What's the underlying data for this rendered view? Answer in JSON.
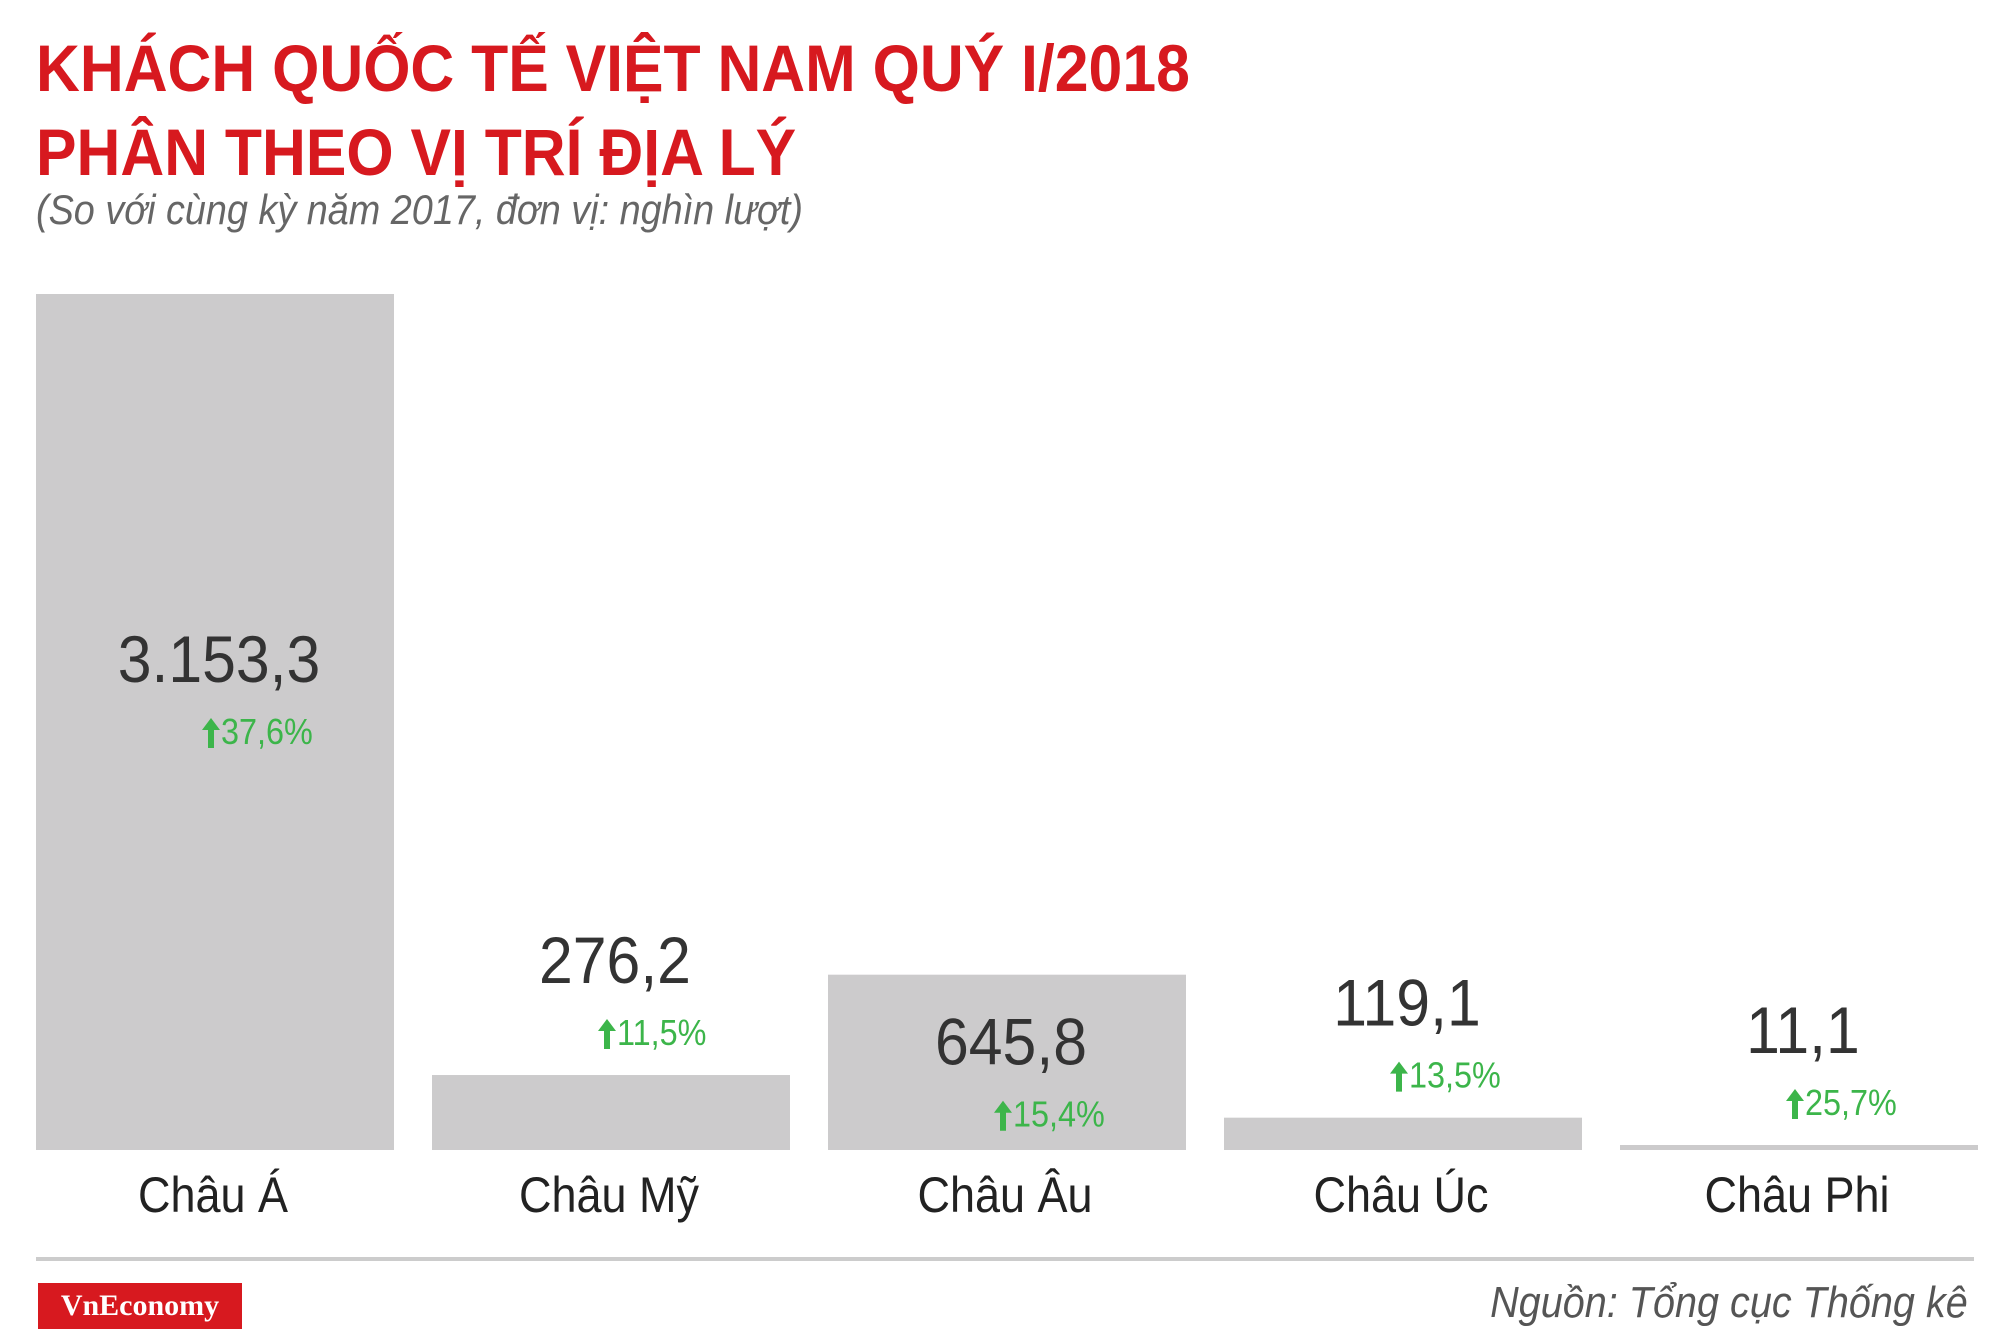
{
  "header": {
    "title_line1": "KHÁCH QUỐC TẾ VIỆT NAM QUÝ I/2018",
    "title_line2": "PHÂN THEO VỊ TRÍ ĐỊA LÝ",
    "subtitle": "(So với cùng kỳ năm 2017, đơn vị: nghìn lượt)"
  },
  "footer": {
    "logo_text": "VnEconomy",
    "source": "Nguồn: Tổng cục Thống kê"
  },
  "colors": {
    "title": "#d7191f",
    "bar": "#cccbcc",
    "value_text": "#333333",
    "change_text": "#3cb54a",
    "rule": "#cccccc"
  },
  "chart_data": {
    "type": "bar",
    "categories": [
      "Châu Á",
      "Châu Mỹ",
      "Châu Âu",
      "Châu Úc",
      "Châu Phi"
    ],
    "values": [
      3153.3,
      276.2,
      645.8,
      119.1,
      11.1
    ],
    "value_labels": [
      "3.153,3",
      "276,2",
      "645,8",
      "119,1",
      "11,1"
    ],
    "change_labels": [
      "37,6%",
      "11,5%",
      "15,4%",
      "13,5%",
      "25,7%"
    ],
    "change_direction": [
      "up",
      "up",
      "up",
      "up",
      "up"
    ],
    "ylim": [
      0,
      3153.3
    ],
    "grid": false,
    "legend": "none"
  }
}
